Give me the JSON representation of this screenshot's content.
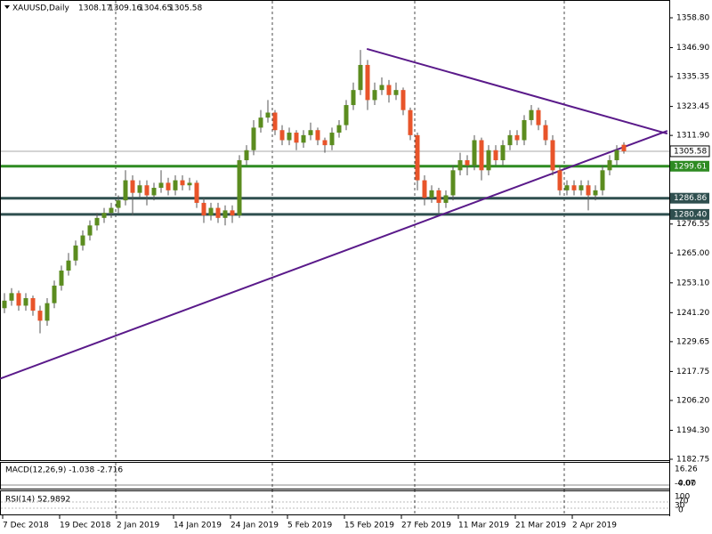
{
  "chart_data": {
    "type": "candlestick",
    "symbol": "XAUUSD,Daily",
    "ylim": [
      1182.4,
      1365.9
    ],
    "yticks": [
      {
        "value": 1358.8,
        "label": "1358.80"
      },
      {
        "value": 1346.9,
        "label": "1346.90"
      },
      {
        "value": 1335.35,
        "label": "1335.35"
      },
      {
        "value": 1323.45,
        "label": "1323.45"
      },
      {
        "value": 1311.9,
        "label": "1311.90"
      },
      {
        "value": 1276.55,
        "label": "1276.55"
      },
      {
        "value": 1265,
        "label": "1265.00"
      },
      {
        "value": 1253.1,
        "label": "1253.10"
      },
      {
        "value": 1241.2,
        "label": "1241.20"
      },
      {
        "value": 1229.65,
        "label": "1229.65"
      },
      {
        "value": 1217.75,
        "label": "1217.75"
      },
      {
        "value": 1206.2,
        "label": "1206.20"
      },
      {
        "value": 1194.3,
        "label": "1194.30"
      },
      {
        "value": 1182.75,
        "label": "1182.75"
      }
    ],
    "bull_color": "#5b8c1f",
    "bear_color": "#e8542a",
    "candles": [
      [
        1243,
        1249,
        1241,
        1246
      ],
      [
        1246,
        1251,
        1244,
        1249
      ],
      [
        1249,
        1250,
        1242,
        1244
      ],
      [
        1244,
        1249,
        1242,
        1247
      ],
      [
        1247,
        1248,
        1240,
        1242
      ],
      [
        1242,
        1244,
        1233,
        1238
      ],
      [
        1238,
        1247,
        1236,
        1245
      ],
      [
        1245,
        1254,
        1243,
        1252
      ],
      [
        1252,
        1260,
        1250,
        1258
      ],
      [
        1258,
        1265,
        1256,
        1262
      ],
      [
        1262,
        1270,
        1260,
        1268
      ],
      [
        1268,
        1274,
        1266,
        1272
      ],
      [
        1272,
        1278,
        1270,
        1276
      ],
      [
        1276,
        1281,
        1274,
        1279
      ],
      [
        1279,
        1283,
        1277,
        1281
      ],
      [
        1281,
        1285,
        1279,
        1283
      ],
      [
        1283,
        1288,
        1281,
        1286
      ],
      [
        1286,
        1298,
        1284,
        1294
      ],
      [
        1294,
        1296,
        1280,
        1289
      ],
      [
        1289,
        1294,
        1287,
        1292
      ],
      [
        1292,
        1294,
        1284,
        1288
      ],
      [
        1288,
        1293,
        1286,
        1291
      ],
      [
        1291,
        1298,
        1289,
        1293
      ],
      [
        1293,
        1295,
        1288,
        1290
      ],
      [
        1290,
        1296,
        1288,
        1294
      ],
      [
        1294,
        1296,
        1290,
        1292
      ],
      [
        1292,
        1295,
        1290,
        1293
      ],
      [
        1293,
        1294,
        1283,
        1285
      ],
      [
        1285,
        1287,
        1277,
        1280
      ],
      [
        1280,
        1285,
        1278,
        1283
      ],
      [
        1283,
        1285,
        1277,
        1279
      ],
      [
        1279,
        1284,
        1276,
        1282
      ],
      [
        1282,
        1284,
        1277,
        1280
      ],
      [
        1280,
        1304,
        1279,
        1302
      ],
      [
        1302,
        1308,
        1300,
        1306
      ],
      [
        1306,
        1318,
        1304,
        1315
      ],
      [
        1315,
        1322,
        1313,
        1319
      ],
      [
        1319,
        1326,
        1317,
        1321
      ],
      [
        1321,
        1322,
        1312,
        1314
      ],
      [
        1314,
        1316,
        1308,
        1310
      ],
      [
        1310,
        1315,
        1308,
        1313
      ],
      [
        1313,
        1314,
        1306,
        1309
      ],
      [
        1309,
        1314,
        1307,
        1312
      ],
      [
        1312,
        1317,
        1310,
        1314
      ],
      [
        1314,
        1315,
        1308,
        1310
      ],
      [
        1310,
        1311,
        1305,
        1308
      ],
      [
        1308,
        1315,
        1306,
        1313
      ],
      [
        1313,
        1318,
        1311,
        1316
      ],
      [
        1316,
        1326,
        1314,
        1324
      ],
      [
        1324,
        1333,
        1322,
        1330
      ],
      [
        1330,
        1346,
        1328,
        1340
      ],
      [
        1340,
        1342,
        1322,
        1326
      ],
      [
        1326,
        1333,
        1324,
        1330
      ],
      [
        1330,
        1335,
        1328,
        1332
      ],
      [
        1332,
        1334,
        1325,
        1328
      ],
      [
        1328,
        1333,
        1326,
        1330
      ],
      [
        1330,
        1331,
        1320,
        1322
      ],
      [
        1322,
        1323,
        1310,
        1312
      ],
      [
        1312,
        1313,
        1290,
        1294
      ],
      [
        1294,
        1296,
        1284,
        1287
      ],
      [
        1287,
        1292,
        1285,
        1290
      ],
      [
        1290,
        1291,
        1281,
        1285
      ],
      [
        1285,
        1290,
        1283,
        1288
      ],
      [
        1288,
        1300,
        1286,
        1298
      ],
      [
        1298,
        1305,
        1296,
        1302
      ],
      [
        1302,
        1304,
        1296,
        1300
      ],
      [
        1300,
        1312,
        1298,
        1310
      ],
      [
        1310,
        1311,
        1294,
        1298
      ],
      [
        1298,
        1308,
        1296,
        1306
      ],
      [
        1306,
        1308,
        1300,
        1302
      ],
      [
        1302,
        1310,
        1300,
        1308
      ],
      [
        1308,
        1314,
        1306,
        1312
      ],
      [
        1312,
        1314,
        1308,
        1310
      ],
      [
        1310,
        1320,
        1308,
        1318
      ],
      [
        1318,
        1324,
        1316,
        1322
      ],
      [
        1322,
        1323,
        1314,
        1316
      ],
      [
        1316,
        1318,
        1308,
        1310
      ],
      [
        1310,
        1312,
        1296,
        1298
      ],
      [
        1298,
        1300,
        1288,
        1290
      ],
      [
        1290,
        1294,
        1288,
        1292
      ],
      [
        1292,
        1294,
        1288,
        1290
      ],
      [
        1290,
        1294,
        1288,
        1292
      ],
      [
        1292,
        1294,
        1282,
        1288
      ],
      [
        1288,
        1292,
        1286,
        1290
      ],
      [
        1290,
        1300,
        1288,
        1298
      ],
      [
        1298,
        1304,
        1296,
        1302
      ],
      [
        1302,
        1308,
        1300,
        1306
      ],
      [
        1308.17,
        1309.16,
        1304.65,
        1305.58
      ]
    ],
    "current": {
      "value": 1305.58,
      "label": "1305.58"
    },
    "levels": [
      {
        "value": 1299.61,
        "label": "1299.61",
        "color": "#2e8b22"
      },
      {
        "value": 1286.86,
        "label": "1286.86",
        "color": "#2f4f4f"
      },
      {
        "value": 1280.4,
        "label": "1280.40",
        "color": "#2f4f4f"
      }
    ],
    "trendlines": [
      {
        "x": [
          -0.6,
          93.1
        ],
        "y": [
          1214.9,
          1313.7
        ],
        "color": "#5a1a8a"
      },
      {
        "x": [
          50.9,
          93.1
        ],
        "y": [
          1346.4,
          1312.6
        ],
        "color": "#5a1a8a"
      }
    ],
    "separators": [
      16,
      38,
      58,
      79
    ],
    "xlabels": [
      {
        "index": 0,
        "label": "7 Dec 2018"
      },
      {
        "index": 8,
        "label": "19 Dec 2018"
      },
      {
        "index": 16,
        "label": "2 Jan 2019"
      },
      {
        "index": 24,
        "label": "14 Jan 2019"
      },
      {
        "index": 32,
        "label": "24 Jan 2019"
      },
      {
        "index": 40,
        "label": "5 Feb 2019"
      },
      {
        "index": 48,
        "label": "15 Feb 2019"
      },
      {
        "index": 56,
        "label": "27 Feb 2019"
      },
      {
        "index": 64,
        "label": "11 Mar 2019"
      },
      {
        "index": 72,
        "label": "21 Mar 2019"
      },
      {
        "index": 80,
        "label": "2 Apr 2019"
      }
    ],
    "macd": {
      "title": "MACD(12,26,9) -1.038 -2.716",
      "scale": [
        "16.26",
        "-4.07",
        "0.00"
      ]
    },
    "rsi": {
      "title": "RSI(14) 52.9892",
      "scale": [
        "100",
        "70",
        "30",
        "0"
      ]
    }
  }
}
